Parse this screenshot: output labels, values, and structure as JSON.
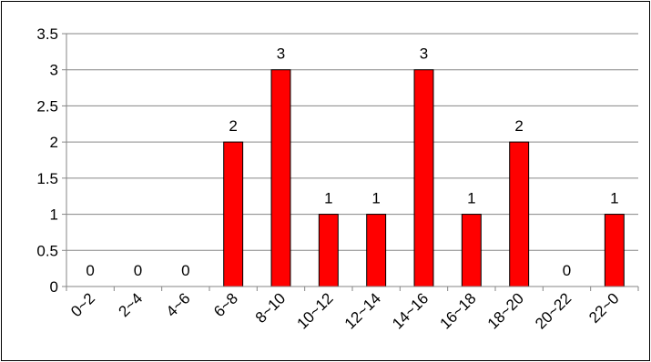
{
  "chart_data": {
    "type": "bar",
    "categories": [
      "0~2",
      "2~4",
      "4~6",
      "6~8",
      "8~10",
      "10~12",
      "12~14",
      "14~16",
      "16~18",
      "18~20",
      "20~22",
      "22~0"
    ],
    "values": [
      0,
      0,
      0,
      2,
      3,
      1,
      1,
      3,
      1,
      2,
      0,
      1
    ],
    "ylim": [
      0,
      3.5
    ],
    "yticks": [
      0,
      0.5,
      1,
      1.5,
      2,
      2.5,
      3,
      3.5
    ],
    "ytick_labels": [
      "0",
      "0.5",
      "1",
      "1.5",
      "2",
      "2.5",
      "3",
      "3.5"
    ],
    "data_labels": [
      "0",
      "0",
      "0",
      "2",
      "3",
      "1",
      "1",
      "3",
      "1",
      "2",
      "0",
      "1"
    ],
    "grid": true,
    "legend": "none",
    "colors": {
      "bar_fill": "#ff0000",
      "bar_stroke": "#000000",
      "grid": "#868686",
      "axis": "#868686"
    }
  }
}
